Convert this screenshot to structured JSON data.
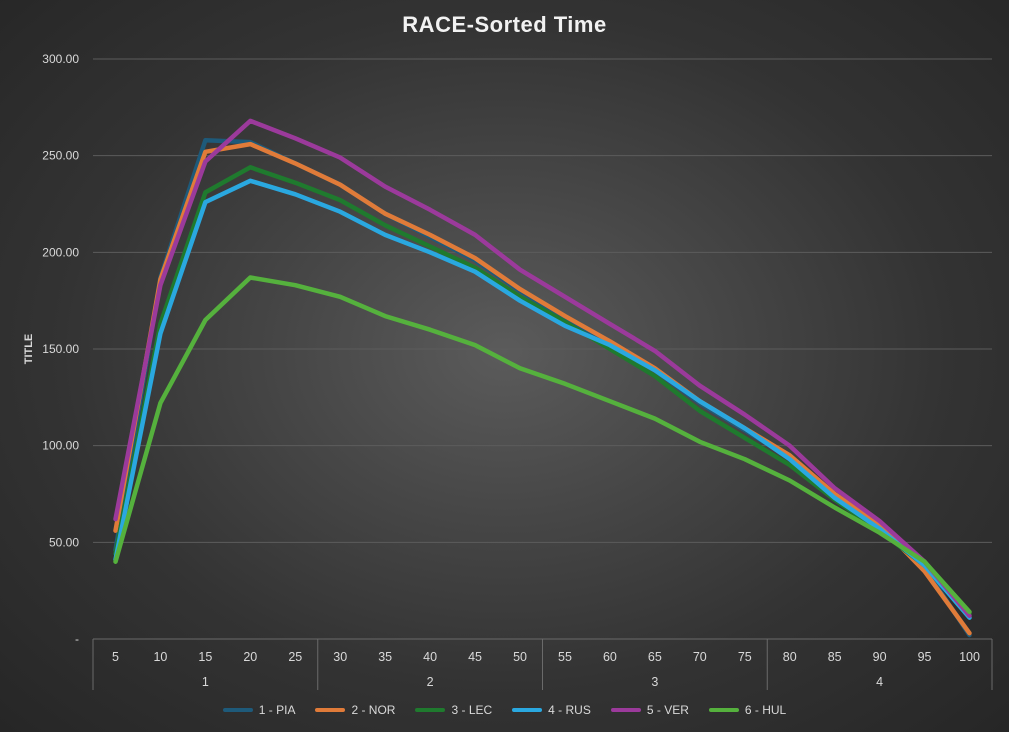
{
  "chart_data": {
    "type": "line",
    "title": "RACE-Sorted Time",
    "xlabel": "",
    "ylabel": "TITLE",
    "ylim": [
      0,
      300
    ],
    "y_ticks": [
      "-",
      "50.00",
      "100.00",
      "150.00",
      "200.00",
      "250.00",
      "300.00"
    ],
    "categories": [
      "5",
      "10",
      "15",
      "20",
      "25",
      "30",
      "35",
      "40",
      "45",
      "50",
      "55",
      "60",
      "65",
      "70",
      "75",
      "80",
      "85",
      "90",
      "95",
      "100"
    ],
    "groups": [
      {
        "label": "1",
        "categories": [
          "5",
          "10",
          "15",
          "20",
          "25"
        ]
      },
      {
        "label": "2",
        "categories": [
          "30",
          "35",
          "40",
          "45",
          "50"
        ]
      },
      {
        "label": "3",
        "categories": [
          "55",
          "60",
          "65",
          "70",
          "75"
        ]
      },
      {
        "label": "4",
        "categories": [
          "80",
          "85",
          "90",
          "95",
          "100"
        ]
      }
    ],
    "grid": true,
    "legend_position": "bottom",
    "series": [
      {
        "name": "1 - PIA",
        "color": "#1e5a7a",
        "values": [
          46,
          187,
          258,
          257,
          246,
          235,
          220,
          208,
          196,
          180,
          166,
          153,
          139,
          122,
          108,
          94,
          74,
          58,
          37,
          2
        ]
      },
      {
        "name": "2 - NOR",
        "color": "#e07b39",
        "values": [
          56,
          186,
          252,
          256,
          246,
          235,
          220,
          209,
          197,
          181,
          167,
          154,
          140,
          123,
          109,
          95,
          75,
          59,
          35,
          3
        ]
      },
      {
        "name": "3 - LEC",
        "color": "#1f7a2e",
        "values": [
          44,
          163,
          231,
          244,
          236,
          227,
          214,
          203,
          192,
          177,
          164,
          150,
          136,
          118,
          104,
          90,
          72,
          56,
          38,
          13
        ]
      },
      {
        "name": "4 - RUS",
        "color": "#2aa8e0",
        "values": [
          41,
          158,
          226,
          237,
          230,
          221,
          209,
          200,
          190,
          175,
          162,
          152,
          139,
          123,
          109,
          93,
          73,
          57,
          38,
          11
        ]
      },
      {
        "name": "5 - VER",
        "color": "#9b3a9b",
        "values": [
          62,
          183,
          247,
          268,
          259,
          249,
          234,
          222,
          209,
          191,
          177,
          163,
          149,
          131,
          116,
          100,
          78,
          61,
          40,
          12
        ]
      },
      {
        "name": "6 - HUL",
        "color": "#55b13d",
        "values": [
          40,
          122,
          165,
          187,
          183,
          177,
          167,
          160,
          152,
          140,
          132,
          123,
          114,
          102,
          93,
          82,
          68,
          55,
          40,
          14
        ]
      }
    ]
  }
}
